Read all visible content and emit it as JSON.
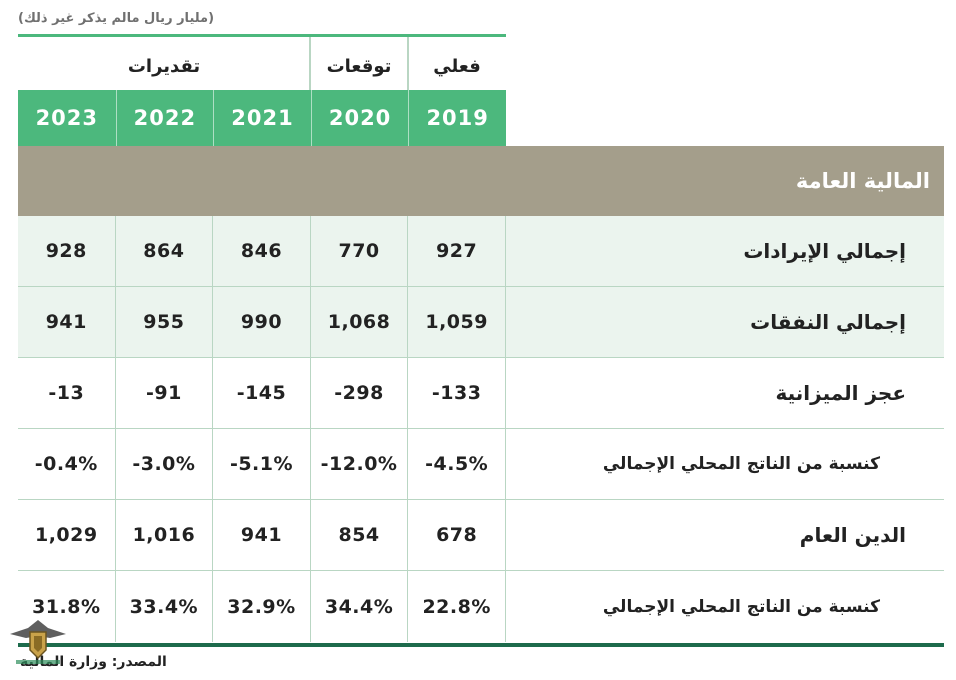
{
  "unit_note": "(مليار ريال مالم يذكر غير ذلك)",
  "colors": {
    "green": "#4cb87d",
    "light_row": "#ebf4ee",
    "band": "#a49e8b",
    "dark_green": "#1d6b4c",
    "divider": "#b9d6c3"
  },
  "groups": {
    "actual": "فعلي",
    "forecast": "توقعات",
    "estimates": "تقديرات"
  },
  "years": [
    "2023",
    "2022",
    "2021",
    "2020",
    "2019"
  ],
  "section_title": "المالية العامة",
  "rows": [
    {
      "label": "إجمالي الإيرادات",
      "values": [
        "928",
        "864",
        "846",
        "770",
        "927"
      ],
      "sub": false,
      "shaded": true
    },
    {
      "label": "إجمالي النفقات",
      "values": [
        "941",
        "955",
        "990",
        "1,068",
        "1,059"
      ],
      "sub": false,
      "shaded": true
    },
    {
      "label": "عجز الميزانية",
      "values": [
        "-13",
        "-91",
        "-145",
        "-298",
        "-133"
      ],
      "sub": false,
      "shaded": false
    },
    {
      "label": "كنسبة من الناتج المحلي الإجمالي",
      "values": [
        "-0.4%",
        "-3.0%",
        "-5.1%",
        "-12.0%",
        "-4.5%"
      ],
      "sub": true,
      "shaded": false
    },
    {
      "label": "الدين العام",
      "values": [
        "1,029",
        "1,016",
        "941",
        "854",
        "678"
      ],
      "sub": false,
      "shaded": false
    },
    {
      "label": "كنسبة من الناتج المحلي الإجمالي",
      "values": [
        "31.8%",
        "33.4%",
        "32.9%",
        "34.4%",
        "22.8%"
      ],
      "sub": true,
      "shaded": false
    }
  ],
  "source": "المصدر: وزارة المالية",
  "logo_icon": "shield-eagle-logo-icon"
}
